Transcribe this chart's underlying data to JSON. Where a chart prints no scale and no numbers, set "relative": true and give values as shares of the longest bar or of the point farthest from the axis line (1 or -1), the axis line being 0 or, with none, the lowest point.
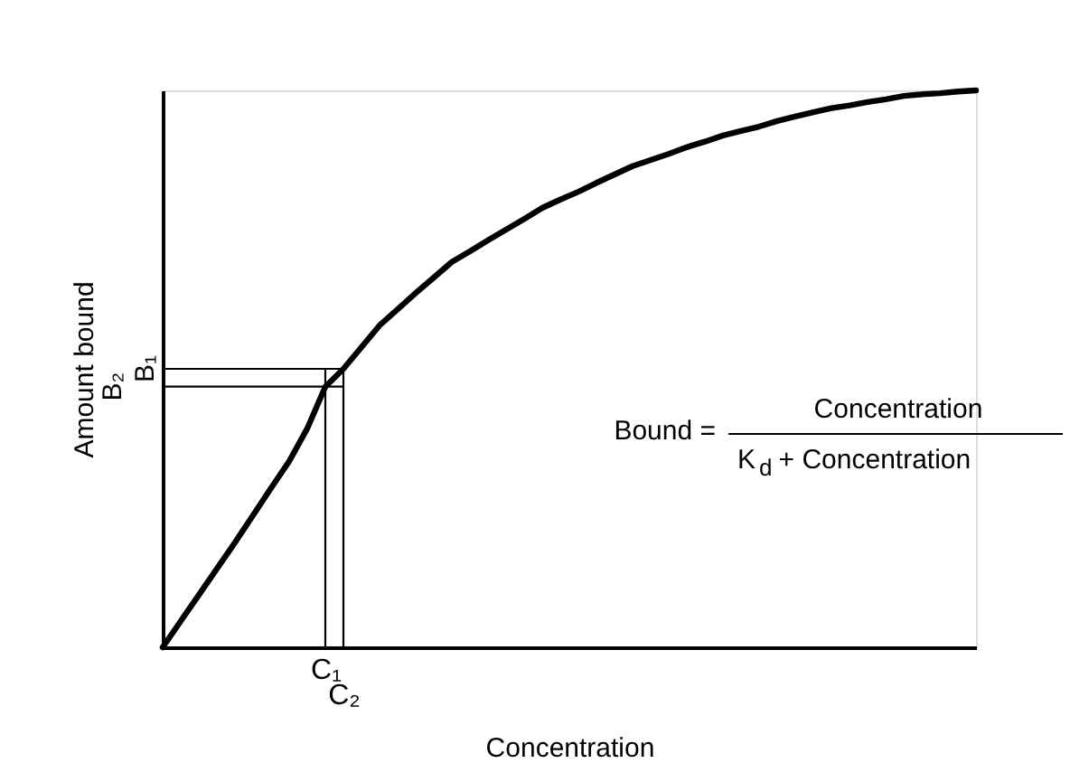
{
  "chart_data": {
    "type": "line",
    "xlabel": "Concentration",
    "ylabel": "Amount bound",
    "relative": true,
    "categories": [
      null,
      null,
      null,
      null,
      null,
      null,
      null,
      null,
      null,
      "C₁",
      "C₂",
      null,
      null,
      null,
      null,
      null,
      null,
      null,
      null,
      null,
      null,
      null,
      null,
      null,
      null,
      null,
      null,
      null,
      null,
      null,
      null,
      null,
      null,
      null,
      null,
      null,
      null,
      null,
      null,
      null,
      null,
      null,
      null,
      null,
      null,
      null
    ],
    "grid": false,
    "marker": "none",
    "line_style": "solid",
    "annotations": [
      "Bound =",
      "Concentration",
      "K$_{d}$ + Concentration"
    ],
    "series": [
      {
        "color": "#000000",
        "values": [
          0,
          0.047,
          0.094,
          0.141,
          0.188,
          0.237,
          0.286,
          0.334,
          0.393,
          0.468,
          0.5,
          0.539,
          0.578,
          0.607,
          0.636,
          0.664,
          0.692,
          0.711,
          0.731,
          0.75,
          0.769,
          0.789,
          0.804,
          0.818,
          0.834,
          0.849,
          0.864,
          0.875,
          0.886,
          0.898,
          0.908,
          0.919,
          0.927,
          0.935,
          0.945,
          0.953,
          0.961,
          0.968,
          0.973,
          0.979,
          0.984,
          0.99,
          0.993,
          0.995,
          0.998,
          1
        ]
      },
      {
        "color": "#000000",
        "x": [
          "C₁",
          "C₁"
        ],
        "values": [
          0,
          0.5
        ]
      },
      {
        "color": "#000000",
        "x": [
          "C₂",
          "C₂"
        ],
        "values": [
          0,
          0.5
        ]
      },
      {
        "name": "B₁",
        "color": "#000000",
        "values": [
          0.5,
          0.5,
          0.5,
          0.5,
          0.5,
          0.5,
          0.5,
          0.5,
          0.5,
          0.5,
          0.5,
          null,
          null,
          null,
          null,
          null,
          null,
          null,
          null,
          null,
          null,
          null,
          null,
          null,
          null,
          null,
          null,
          null,
          null,
          null,
          null,
          null,
          null,
          null,
          null,
          null,
          null,
          null,
          null,
          null,
          null,
          null,
          null,
          null,
          null,
          null
        ]
      },
      {
        "name": "B₂",
        "color": "#000000",
        "values": [
          0.468,
          0.468,
          0.468,
          0.468,
          0.468,
          0.468,
          0.468,
          0.468,
          0.468,
          0.468,
          0.468,
          null,
          null,
          null,
          null,
          null,
          null,
          null,
          null,
          null,
          null,
          null,
          null,
          null,
          null,
          null,
          null,
          null,
          null,
          null,
          null,
          null,
          null,
          null,
          null,
          null,
          null,
          null,
          null,
          null,
          null,
          null,
          null,
          null,
          null,
          null
        ]
      }
    ]
  }
}
